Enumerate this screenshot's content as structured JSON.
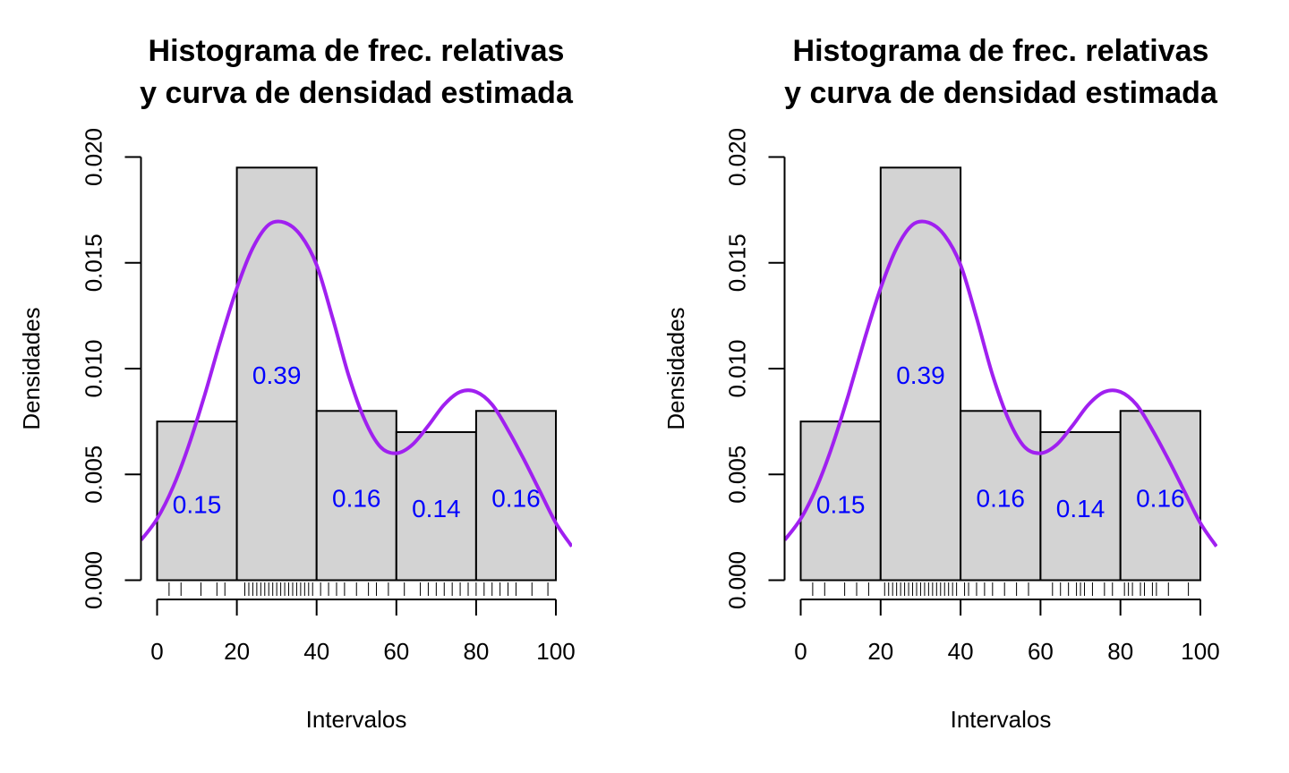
{
  "colors": {
    "bar_fill": "#d3d3d3",
    "bar_stroke": "#000000",
    "curve": "#a020f0",
    "label": "#0000ff"
  },
  "chart_data": [
    {
      "type": "bar",
      "panel": "left",
      "title_lines": [
        "Histograma de frec. relativas",
        "y curva de densidad estimada"
      ],
      "xlabel": "Intervalos",
      "ylabel": "Densidades",
      "xlim": [
        -4.5,
        104.5
      ],
      "ylim": [
        0,
        0.02
      ],
      "xticks": [
        "0",
        "20",
        "40",
        "60",
        "80",
        "100"
      ],
      "yticks": [
        "0.000",
        "0.005",
        "0.010",
        "0.015",
        "0.020"
      ],
      "bins": [
        [
          0,
          20
        ],
        [
          20,
          40
        ],
        [
          40,
          60
        ],
        [
          60,
          80
        ],
        [
          80,
          100
        ]
      ],
      "densities": [
        0.0075,
        0.0195,
        0.008,
        0.007,
        0.008
      ],
      "bar_labels": [
        "0.15",
        "0.39",
        "0.16",
        "0.14",
        "0.16"
      ],
      "label_y": [
        0.0036,
        0.0097,
        0.0039,
        0.0034,
        0.0039
      ],
      "density_curve": {
        "x": [
          -4,
          0,
          4,
          8,
          12,
          16,
          20,
          24,
          28,
          32,
          36,
          40,
          44,
          48,
          52,
          56,
          60,
          64,
          68,
          72,
          76,
          80,
          84,
          88,
          92,
          96,
          100,
          104
        ],
        "y": [
          0.0019,
          0.0029,
          0.0044,
          0.0064,
          0.0088,
          0.0114,
          0.0138,
          0.0157,
          0.0168,
          0.0169,
          0.0163,
          0.0149,
          0.0124,
          0.0097,
          0.0076,
          0.0063,
          0.006,
          0.0064,
          0.0073,
          0.0083,
          0.0089,
          0.0089,
          0.0083,
          0.0071,
          0.0057,
          0.0042,
          0.0027,
          0.0016
        ]
      },
      "rug": [
        3,
        6,
        11,
        15,
        17,
        22,
        23,
        24,
        25,
        26,
        27,
        28,
        29,
        30,
        31,
        32,
        33,
        34,
        35,
        36,
        37,
        38,
        39,
        41,
        43,
        45,
        47,
        50,
        53,
        55,
        58,
        62,
        66,
        68,
        70,
        72,
        74,
        76,
        78,
        80,
        82,
        84,
        86,
        88,
        90,
        94,
        98
      ]
    },
    {
      "type": "bar",
      "panel": "right",
      "title_lines": [
        "Histograma de frec. relativas",
        "y curva de densidad estimada"
      ],
      "xlabel": "Intervalos",
      "ylabel": "Densidades",
      "xlim": [
        -4.5,
        104.5
      ],
      "ylim": [
        0,
        0.02
      ],
      "xticks": [
        "0",
        "20",
        "40",
        "60",
        "80",
        "100"
      ],
      "yticks": [
        "0.000",
        "0.005",
        "0.010",
        "0.015",
        "0.020"
      ],
      "bins": [
        [
          0,
          20
        ],
        [
          20,
          40
        ],
        [
          40,
          60
        ],
        [
          60,
          80
        ],
        [
          80,
          100
        ]
      ],
      "densities": [
        0.0075,
        0.0195,
        0.008,
        0.007,
        0.008
      ],
      "bar_labels": [
        "0.15",
        "0.39",
        "0.16",
        "0.14",
        "0.16"
      ],
      "label_y": [
        0.0036,
        0.0097,
        0.0039,
        0.0034,
        0.0039
      ],
      "density_curve": {
        "x": [
          -4,
          0,
          4,
          8,
          12,
          16,
          20,
          24,
          28,
          32,
          36,
          40,
          44,
          48,
          52,
          56,
          60,
          64,
          68,
          72,
          76,
          80,
          84,
          88,
          92,
          96,
          100,
          104
        ],
        "y": [
          0.0019,
          0.0029,
          0.0044,
          0.0064,
          0.0088,
          0.0114,
          0.0138,
          0.0157,
          0.0168,
          0.0169,
          0.0163,
          0.0149,
          0.0124,
          0.0097,
          0.0076,
          0.0063,
          0.006,
          0.0064,
          0.0073,
          0.0083,
          0.0089,
          0.0089,
          0.0083,
          0.0071,
          0.0057,
          0.0042,
          0.0027,
          0.0016
        ]
      },
      "rug": [
        3,
        6,
        11,
        14,
        17,
        21,
        22,
        23,
        24,
        25,
        26,
        27,
        28,
        29,
        30,
        31,
        32,
        33,
        34,
        35,
        36,
        37,
        38,
        39,
        41,
        42,
        44,
        46,
        48,
        51,
        54,
        57,
        63,
        65,
        67,
        69,
        70,
        71,
        73,
        76,
        78,
        81,
        82,
        83,
        85,
        86,
        88,
        89,
        92,
        97
      ]
    }
  ]
}
